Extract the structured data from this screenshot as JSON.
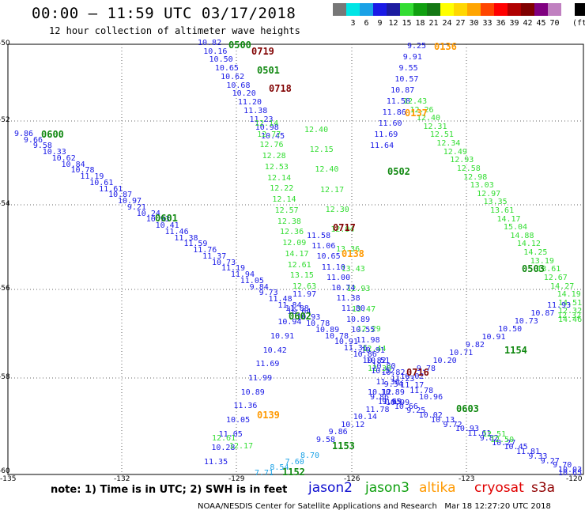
{
  "title": "00:00 – 11:59 UTC 03/17/2018",
  "subtitle": "12 hour collection of altimeter wave heights",
  "legend": {
    "unit": "(ft)",
    "colors": [
      "#777777",
      "#00e5e5",
      "#1aa1e6",
      "#1a1ae6",
      "#1c1ca0",
      "#33dd33",
      "#10a010",
      "#147814",
      "#ffff00",
      "#ffd700",
      "#ffa500",
      "#ff4500",
      "#ff0000",
      "#b00000",
      "#800000",
      "#800080",
      "#c080c0",
      "#ffffff",
      "#000000"
    ],
    "labels": [
      "3",
      "6",
      "9",
      "12",
      "15",
      "18",
      "21",
      "24",
      "27",
      "30",
      "33",
      "36",
      "39",
      "42",
      "45",
      "70"
    ]
  },
  "axes": {
    "lat_labels": [
      "-50",
      "-52",
      "-54",
      "-56",
      "-58",
      "-60"
    ],
    "lon_labels": [
      "-135",
      "-132",
      "-129",
      "-126",
      "-123",
      "-120"
    ]
  },
  "passes": [
    {
      "text": "0500",
      "color": "#108810"
    },
    {
      "text": "0719",
      "color": "#800000"
    },
    {
      "text": "0501",
      "color": "#108810"
    },
    {
      "text": "0718",
      "color": "#800000"
    },
    {
      "text": "0136",
      "color": "#ff9900"
    },
    {
      "text": "0137",
      "color": "#ff9900"
    },
    {
      "text": "0600",
      "color": "#108810"
    },
    {
      "text": "0502",
      "color": "#108810"
    },
    {
      "text": "0601",
      "color": "#108810"
    },
    {
      "text": "0717",
      "color": "#800000"
    },
    {
      "text": "0138",
      "color": "#ff9900"
    },
    {
      "text": "0503",
      "color": "#108810"
    },
    {
      "text": "0602",
      "color": "#108810"
    },
    {
      "text": "1154",
      "color": "#108810"
    },
    {
      "text": "0716",
      "color": "#800000"
    },
    {
      "text": "0603",
      "color": "#108810"
    },
    {
      "text": "0139",
      "color": "#ff9900"
    },
    {
      "text": "1153",
      "color": "#108810"
    },
    {
      "text": "1152",
      "color": "#108810"
    }
  ],
  "tracks": {
    "track_a": {
      "color": "#1a1ae6",
      "values": [
        "10.82",
        "10.16",
        "10.50",
        "10.65",
        "10.62",
        "10.68",
        "10.20",
        "11.20",
        "11.38",
        "11.23",
        "10.98",
        "10.45"
      ]
    },
    "track_b": {
      "color": "#1a1ae6",
      "values": [
        "9.86",
        "9.66",
        "9.58",
        "10.33",
        "10.62",
        "10.84",
        "10.78",
        "11.19",
        "10.61",
        "11.61",
        "10.87",
        "10.97",
        "9.21",
        "10.24",
        "10.93",
        "10.41",
        "11.46",
        "11.38",
        "11.59",
        "11.76",
        "11.37",
        "10.73",
        "11.19",
        "11.94",
        "11.05",
        "9.84",
        "9.73",
        "11.48",
        "11.84",
        "10.64",
        "10.93",
        "10.78",
        "10.89",
        "10.78",
        "10.91",
        "11.36",
        "10.86",
        "10.82",
        "10.80",
        "10.82",
        "11.23",
        "11.17",
        "11.78",
        "10.96"
      ]
    },
    "track_c": {
      "color": "#1a1ae6",
      "values": [
        "9.25",
        "9.91",
        "9.55",
        "10.57",
        "10.87",
        "11.58",
        "11.86",
        "11.60",
        "11.69",
        "11.64"
      ]
    },
    "track_d": {
      "color": "#33dd33",
      "values": [
        "12.43",
        "12.26",
        "12.40",
        "12.31",
        "12.51",
        "12.34",
        "12.49",
        "12.93",
        "12.58",
        "12.98",
        "13.03",
        "12.97",
        "13.35",
        "13.61",
        "14.17",
        "15.04",
        "14.88",
        "14.12",
        "14.25",
        "13.19",
        "13.61",
        "12.67",
        "14.27",
        "14.19",
        "14.51",
        "12.32",
        "14.46"
      ]
    },
    "track_e": {
      "color": "#33dd33",
      "values": [
        "12.14",
        "12.77",
        "12.76",
        "12.28",
        "12.53",
        "12.14",
        "12.22",
        "12.14",
        "12.57",
        "12.38",
        "12.36",
        "12.09",
        "14.17",
        "12.61",
        "13.15",
        "12.63"
      ]
    },
    "track_f": {
      "color": "#33dd33",
      "values": [
        "12.40",
        "12.15",
        "12.40",
        "12.17",
        "12.30",
        "12.94",
        "13.36",
        "13.43",
        "12.93",
        "13.47",
        "12.29",
        "12.44",
        "12.38"
      ]
    },
    "track_g": {
      "color": "#1a1ae6",
      "values": [
        "11.58",
        "11.06",
        "10.65",
        "11.10",
        "11.00",
        "10.74",
        "11.38",
        "11.80",
        "10.89",
        "10.55",
        "11.98",
        "10.91",
        "10.51",
        "10.52",
        "11.36",
        "10.89",
        "10.99"
      ]
    },
    "track_h": {
      "color": "#1a1ae6",
      "values": [
        "11.97",
        "11.88",
        "10.94",
        "10.91",
        "10.42",
        "11.69",
        "11.99",
        "10.89",
        "11.36",
        "10.05",
        "11.05",
        "10.28",
        "11.35"
      ]
    },
    "track_i": {
      "color": "#1a1ae6",
      "values": [
        "11.93",
        "10.87",
        "10.73",
        "10.50",
        "10.91",
        "9.82",
        "10.71",
        "10.20",
        "9.78",
        "10.02",
        "9.34",
        "10.12",
        "9.86",
        "9.95",
        "10.66",
        "9.25",
        "10.02",
        "10.13",
        "9.72",
        "10.93",
        "11.61",
        "9.82",
        "10.27",
        "10.45",
        "11.81",
        "9.33",
        "9.27",
        "9.70",
        "10.03",
        "10.65"
      ]
    },
    "track_j": {
      "color": "#33dd33",
      "values": [
        "12.51",
        "12.50",
        "12.61",
        "12.17",
        "12.32"
      ]
    },
    "track_k": {
      "color": "#1aa1e6",
      "values": [
        "8.70",
        "7.60",
        "8.54",
        "7.71"
      ]
    },
    "track_l": {
      "color": "#1a1ae6",
      "values": [
        "9.58",
        "9.86",
        "10.12",
        "10.14",
        "11.78",
        "11.69"
      ]
    }
  },
  "note": "note: 1) Time is in UTC; 2) SWH is in feet",
  "satellites": [
    {
      "name": "jason2",
      "color": "#1010d0"
    },
    {
      "name": "jason3",
      "color": "#10a010"
    },
    {
      "name": "altika",
      "color": "#ff9900"
    },
    {
      "name": "cryosat",
      "color": "#e00000"
    },
    {
      "name": "s3a",
      "color": "#900000"
    }
  ],
  "credit": "NOAA/NESDIS Center for Satellite Applications and Research   Mar 18 12:27:20 UTC 2018"
}
